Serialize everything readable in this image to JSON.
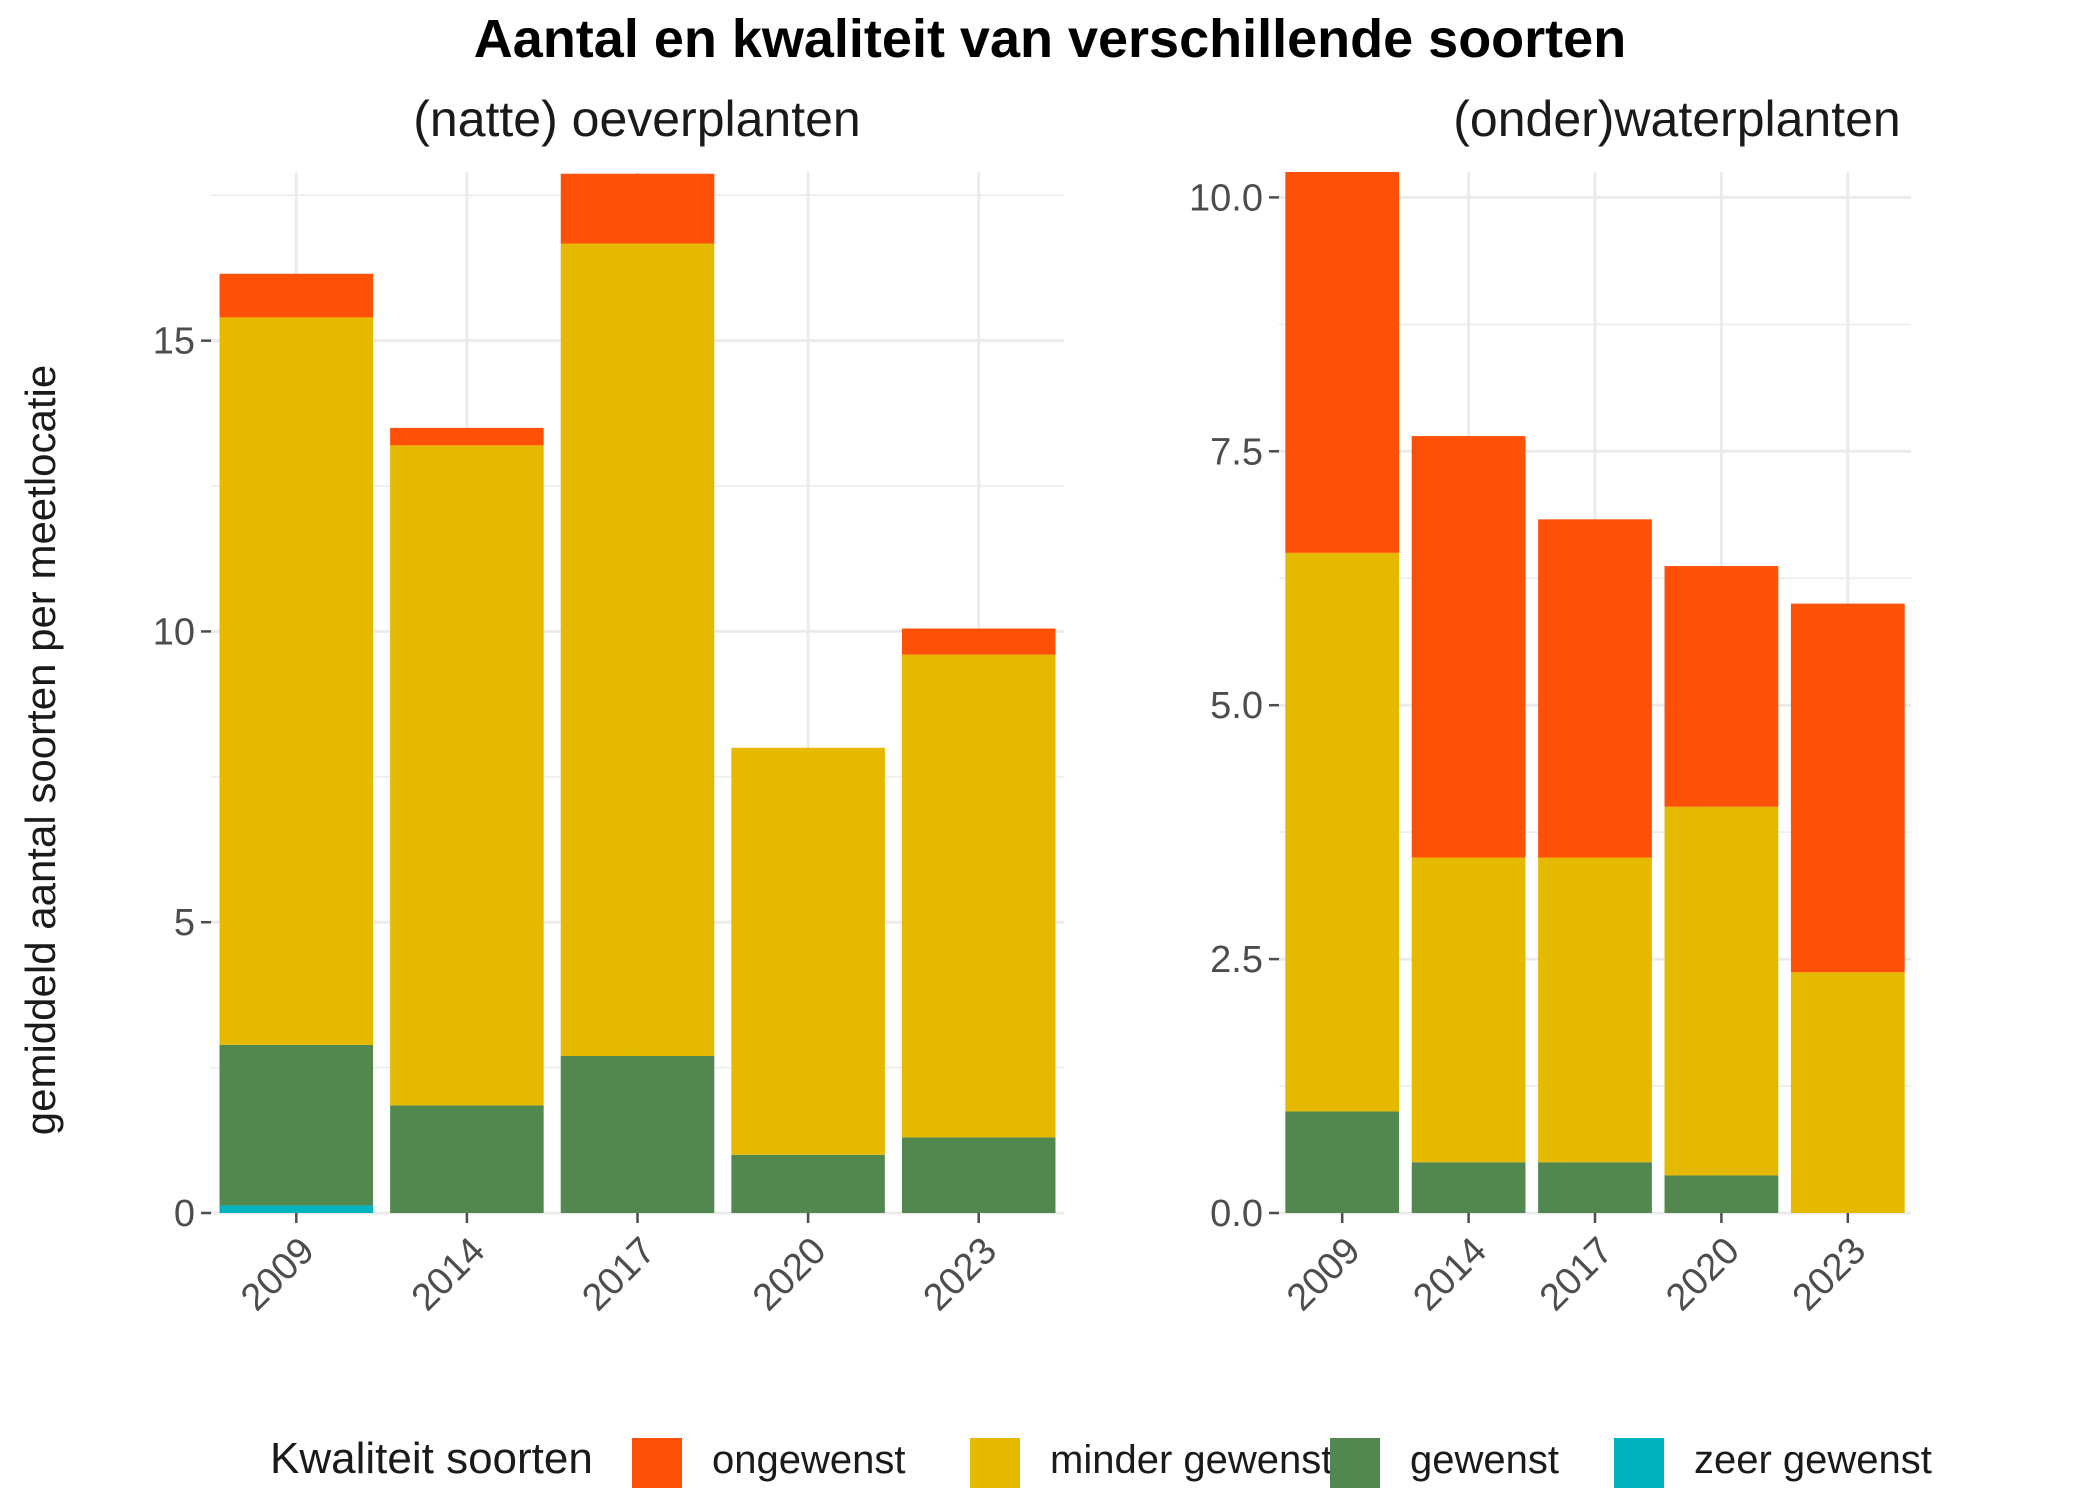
{
  "title": "Aantal en kwaliteit van verschillende soorten",
  "colors": {
    "ongewenst": "#FF5008",
    "minder gewenst": "#E5B900",
    "gewenst": "#52884F",
    "zeer gewenst": "#00B3BE",
    "grid": "#EBEBEB",
    "tick": "#4D4D4D"
  },
  "legend": {
    "title": "Kwaliteit soorten",
    "items": [
      "ongewenst",
      "minder gewenst",
      "gewenst",
      "zeer gewenst"
    ]
  },
  "chart_data": [
    {
      "type": "bar",
      "stacked": true,
      "title": "(natte) oeverplanten",
      "ylabel": "gemiddeld aantal soorten per meetlocatie",
      "categories": [
        "2009",
        "2014",
        "2017",
        "2020",
        "2023"
      ],
      "ylim": [
        0,
        17.9
      ],
      "yticks": [
        0,
        5,
        10,
        15
      ],
      "ytick_labels": [
        "0",
        "5",
        "10",
        "15"
      ],
      "series": [
        {
          "name": "zeer gewenst",
          "values": [
            0.13,
            0,
            0,
            0,
            0
          ]
        },
        {
          "name": "gewenst",
          "values": [
            2.76,
            1.85,
            2.7,
            1.0,
            1.3
          ]
        },
        {
          "name": "minder gewenst",
          "values": [
            12.51,
            11.35,
            13.97,
            7.0,
            8.3
          ]
        },
        {
          "name": "ongewenst",
          "values": [
            0.75,
            0.3,
            1.2,
            0,
            0.45
          ]
        }
      ]
    },
    {
      "type": "bar",
      "stacked": true,
      "title": "(onder)waterplanten",
      "categories": [
        "2009",
        "2014",
        "2017",
        "2020",
        "2023"
      ],
      "ylim": [
        0,
        10.25
      ],
      "yticks": [
        0,
        2.5,
        5,
        7.5,
        10
      ],
      "ytick_labels": [
        "0.0",
        "2.5",
        "5.0",
        "7.5",
        "10.0"
      ],
      "series": [
        {
          "name": "zeer gewenst",
          "values": [
            0,
            0,
            0,
            0,
            0
          ]
        },
        {
          "name": "gewenst",
          "values": [
            1.0,
            0.5,
            0.5,
            0.37,
            0
          ]
        },
        {
          "name": "minder gewenst",
          "values": [
            5.5,
            3.0,
            3.0,
            3.63,
            2.37
          ]
        },
        {
          "name": "ongewenst",
          "values": [
            3.75,
            4.15,
            3.33,
            2.37,
            3.63
          ]
        }
      ]
    }
  ]
}
